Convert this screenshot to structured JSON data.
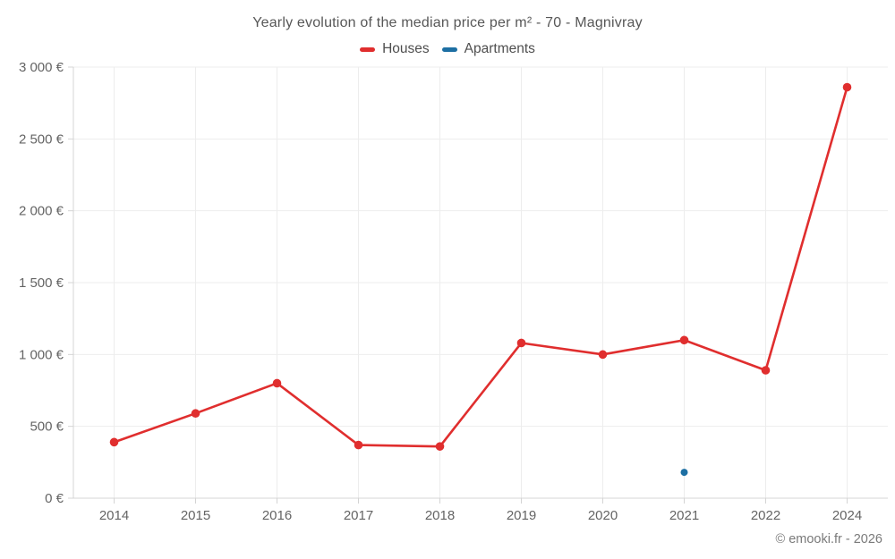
{
  "page": {
    "background": "#ffffff"
  },
  "footer": {
    "credit": "© emooki.fr - 2026"
  },
  "chart_data": {
    "type": "line",
    "title": "Yearly evolution of the median price per m² - 70 - Magnivray",
    "categories": [
      "2014",
      "2015",
      "2016",
      "2017",
      "2018",
      "2019",
      "2020",
      "2021",
      "2022",
      "2024"
    ],
    "series": [
      {
        "name": "Houses",
        "color": "#e02e2e",
        "line_width": 2.6,
        "marker_radius": 4.8,
        "values": [
          390,
          590,
          800,
          370,
          360,
          1080,
          1000,
          1100,
          890,
          2860
        ]
      },
      {
        "name": "Apartments",
        "color": "#1d6fa3",
        "line_width": 2.6,
        "marker_radius": 4,
        "values": [
          null,
          null,
          null,
          null,
          null,
          null,
          null,
          180,
          null,
          null
        ]
      }
    ],
    "xlabel": "",
    "ylabel": "",
    "ylim": [
      0,
      3000
    ],
    "grid": true,
    "legend_position": "top",
    "yticks": [
      {
        "value": 0,
        "label": "0 €"
      },
      {
        "value": 500,
        "label": "500 €"
      },
      {
        "value": 1000,
        "label": "1 000 €"
      },
      {
        "value": 1500,
        "label": "1 500 €"
      },
      {
        "value": 2000,
        "label": "2 000 €"
      },
      {
        "value": 2500,
        "label": "2 500 €"
      },
      {
        "value": 3000,
        "label": "3 000 €"
      }
    ]
  }
}
